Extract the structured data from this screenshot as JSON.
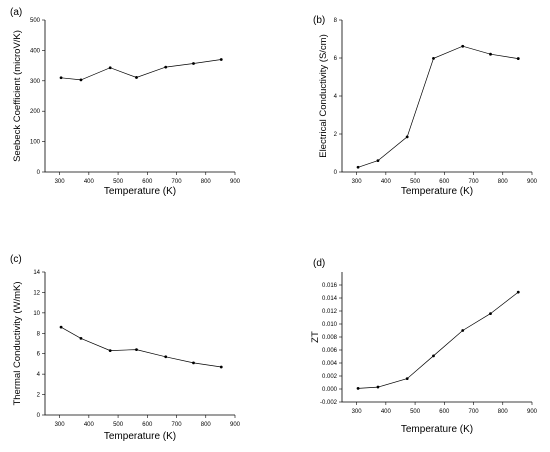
{
  "chart_data": [
    {
      "panel": "(a)",
      "type": "line",
      "xlabel": "Temperature (K)",
      "ylabel": "Seebeck Coefficient (microV/K)",
      "xlim": [
        250,
        900
      ],
      "ylim": [
        0,
        500
      ],
      "xticks": [
        300,
        400,
        500,
        600,
        700,
        800,
        900
      ],
      "yticks": [
        0,
        100,
        200,
        300,
        400,
        500
      ],
      "x": [
        305,
        373,
        473,
        563,
        663,
        758,
        853
      ],
      "y": [
        310,
        303,
        343,
        311,
        345,
        357,
        370
      ]
    },
    {
      "panel": "(b)",
      "type": "line",
      "xlabel": "Temperature (K)",
      "ylabel": "Electrical Conductivity (S/cm)",
      "xlim": [
        250,
        900
      ],
      "ylim": [
        0,
        8
      ],
      "xticks": [
        300,
        400,
        500,
        600,
        700,
        800,
        900
      ],
      "yticks": [
        0,
        2,
        4,
        6,
        8
      ],
      "x": [
        305,
        373,
        473,
        563,
        663,
        758,
        853
      ],
      "y": [
        0.25,
        0.6,
        1.85,
        5.98,
        6.62,
        6.2,
        5.97
      ]
    },
    {
      "panel": "(c)",
      "type": "line",
      "xlabel": "Temperature (K)",
      "ylabel": "Thermal Conductivity (W/mK)",
      "xlim": [
        250,
        900
      ],
      "ylim": [
        0,
        14
      ],
      "xticks": [
        300,
        400,
        500,
        600,
        700,
        800,
        900
      ],
      "yticks": [
        0,
        2,
        4,
        6,
        8,
        10,
        12,
        14
      ],
      "x": [
        305,
        373,
        473,
        563,
        663,
        758,
        853
      ],
      "y": [
        8.6,
        7.5,
        6.3,
        6.4,
        5.7,
        5.1,
        4.7
      ]
    },
    {
      "panel": "(d)",
      "type": "line",
      "xlabel": "Temperature (K)",
      "ylabel": "ZT",
      "xlim": [
        250,
        900
      ],
      "ylim": [
        -0.002,
        0.018
      ],
      "xticks": [
        300,
        400,
        500,
        600,
        700,
        800,
        900
      ],
      "yticks": [
        -0.002,
        0.0,
        0.002,
        0.004,
        0.006,
        0.008,
        0.01,
        0.012,
        0.014,
        0.016
      ],
      "ytick_decimals": 3,
      "x": [
        305,
        373,
        473,
        563,
        663,
        758,
        853
      ],
      "y": [
        0.0001,
        0.0003,
        0.0016,
        0.0051,
        0.009,
        0.0116,
        0.0149
      ]
    }
  ]
}
